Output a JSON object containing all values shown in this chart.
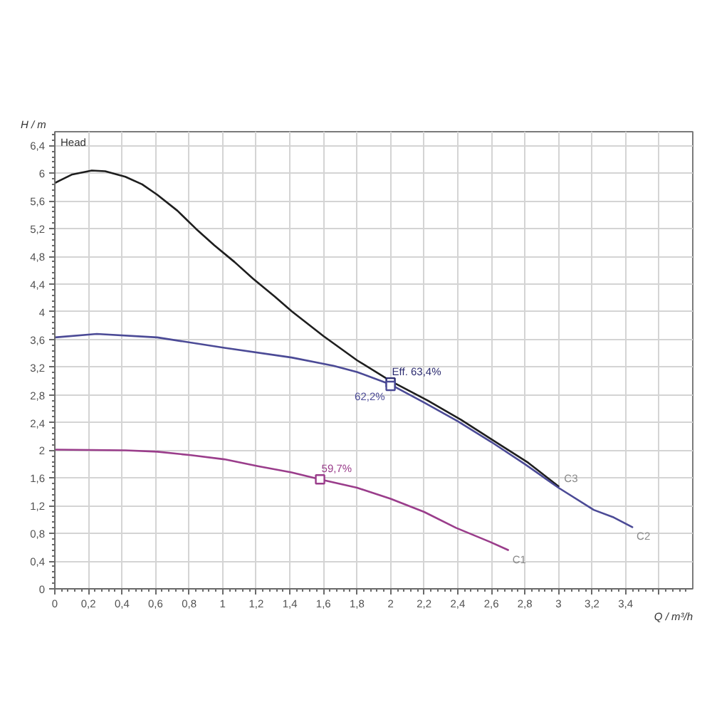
{
  "chart_data": {
    "type": "line",
    "title": "Head",
    "xlabel": "Q / m³/h",
    "ylabel": "H / m",
    "xlim": [
      0,
      3.8
    ],
    "ylim": [
      0,
      6.6
    ],
    "xticks": [
      0,
      {
        "value": 0.2,
        "label": "0,2"
      },
      {
        "value": 0.4,
        "label": "0,4"
      },
      {
        "value": 0.6,
        "label": "0,6"
      },
      {
        "value": 0.8,
        "label": "0,8"
      },
      1,
      {
        "value": 1.2,
        "label": "1,2"
      },
      {
        "value": 1.4,
        "label": "1,4"
      },
      {
        "value": 1.6,
        "label": "1,6"
      },
      {
        "value": 1.8,
        "label": "1,8"
      },
      2,
      {
        "value": 2.2,
        "label": "2,2"
      },
      {
        "value": 2.4,
        "label": "2,4"
      },
      {
        "value": 2.6,
        "label": "2,6"
      },
      {
        "value": 2.8,
        "label": "2,8"
      },
      3,
      {
        "value": 3.2,
        "label": "3,2"
      },
      {
        "value": 3.4,
        "label": "3,4"
      },
      {
        "value": 3.6,
        "label": null
      }
    ],
    "yticks": [
      0,
      {
        "value": 0.4,
        "label": "0,4"
      },
      {
        "value": 0.8,
        "label": "0,8"
      },
      {
        "value": 1.2,
        "label": "1,2"
      },
      {
        "value": 1.6,
        "label": "1,6"
      },
      2,
      {
        "value": 2.4,
        "label": "2,4"
      },
      {
        "value": 2.8,
        "label": "2,8"
      },
      {
        "value": 3.2,
        "label": "3,2"
      },
      {
        "value": 3.6,
        "label": "3,6"
      },
      4,
      {
        "value": 4.4,
        "label": "4,4"
      },
      {
        "value": 4.8,
        "label": "4,8"
      },
      {
        "value": 5.2,
        "label": "5,2"
      },
      {
        "value": 5.6,
        "label": "5,6"
      },
      6,
      {
        "value": 6.4,
        "label": "6,4"
      }
    ],
    "grid": true,
    "series": [
      {
        "name": "C3",
        "color": "#1e1e1e",
        "x": [
          0,
          0.1,
          0.22,
          0.3,
          0.42,
          0.52,
          0.61,
          0.73,
          0.84,
          0.95,
          1.07,
          1.18,
          1.31,
          1.41,
          1.6,
          1.8,
          2.0,
          2.22,
          2.42,
          2.62,
          2.82,
          3.0
        ],
        "values": [
          5.86,
          5.98,
          6.04,
          6.03,
          5.95,
          5.84,
          5.69,
          5.46,
          5.2,
          4.96,
          4.72,
          4.48,
          4.22,
          4.01,
          3.65,
          3.3,
          3.0,
          2.72,
          2.44,
          2.13,
          1.82,
          1.48
        ]
      },
      {
        "name": "C2",
        "color": "#4b4a96",
        "x": [
          0,
          0.25,
          0.61,
          1.01,
          1.41,
          1.66,
          1.8,
          2.0,
          2.2,
          2.4,
          2.6,
          2.8,
          3.0,
          3.21,
          3.33,
          3.44
        ],
        "values": [
          3.63,
          3.68,
          3.63,
          3.48,
          3.34,
          3.22,
          3.13,
          2.95,
          2.69,
          2.42,
          2.12,
          1.8,
          1.46,
          1.14,
          1.03,
          0.89
        ]
      },
      {
        "name": "C1",
        "color": "#9a3d8b",
        "x": [
          0,
          0.42,
          0.61,
          0.81,
          1.01,
          1.21,
          1.41,
          1.58,
          1.8,
          2.0,
          2.2,
          2.39,
          2.59,
          2.7
        ],
        "values": [
          2.01,
          2.0,
          1.98,
          1.93,
          1.87,
          1.77,
          1.68,
          1.58,
          1.46,
          1.3,
          1.11,
          0.88,
          0.68,
          0.56
        ]
      },
      {
        "type": "scatter",
        "marker": "square",
        "color": "#2c2c70",
        "x": [
          2.0
        ],
        "values": [
          2.98
        ]
      },
      {
        "type": "scatter",
        "marker": "square",
        "color": "#4b4a96",
        "x": [
          2.0
        ],
        "values": [
          2.93
        ]
      },
      {
        "type": "scatter",
        "marker": "square",
        "color": "#9a3d8b",
        "x": [
          1.58
        ],
        "values": [
          1.58
        ]
      }
    ],
    "annotations": [
      "Eff. 63,4%",
      "62,2%",
      "59,7%"
    ]
  }
}
